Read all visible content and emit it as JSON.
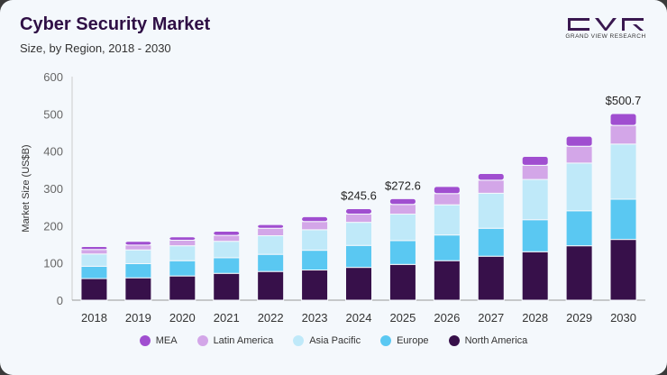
{
  "chart_data": {
    "type": "bar",
    "stacked": true,
    "title": "Cyber Security Market",
    "subtitle": "Size, by Region, 2018 - 2030",
    "ylabel": "Market Size (US$B)",
    "xlabel": "",
    "ylim": [
      0,
      600
    ],
    "yticks": [
      0,
      100,
      200,
      300,
      400,
      500,
      600
    ],
    "grid": false,
    "legend_position": "bottom",
    "categories": [
      "2018",
      "2019",
      "2020",
      "2021",
      "2022",
      "2023",
      "2024",
      "2025",
      "2026",
      "2027",
      "2028",
      "2029",
      "2030"
    ],
    "series": [
      {
        "name": "North America",
        "color": "#37104a",
        "values": [
          58,
          60,
          65,
          72,
          77,
          81,
          88,
          96,
          106,
          118,
          130,
          146,
          163
        ]
      },
      {
        "name": "Europe",
        "color": "#5ac8f2",
        "values": [
          33,
          38,
          41,
          42,
          46,
          53,
          59,
          64,
          69,
          75,
          86,
          94,
          108
        ]
      },
      {
        "name": "Asia Pacific",
        "color": "#bfe9f9",
        "values": [
          33,
          37,
          40,
          44,
          50,
          55,
          62,
          71,
          81,
          94,
          108,
          128,
          148
        ]
      },
      {
        "name": "Latin America",
        "color": "#d3a6e8",
        "values": [
          12,
          13,
          15,
          16,
          20,
          22,
          22,
          26,
          30,
          35,
          38,
          45,
          50
        ]
      },
      {
        "name": "MEA",
        "color": "#a04ed0",
        "values": [
          8,
          10,
          9,
          11,
          10,
          13,
          14.6,
          15.6,
          19,
          18,
          24,
          27,
          31.7
        ]
      }
    ],
    "data_labels": [
      {
        "category": "2024",
        "text": "$245.6"
      },
      {
        "category": "2025",
        "text": "$272.6"
      },
      {
        "category": "2030",
        "text": "$500.7"
      }
    ]
  },
  "logo": {
    "text": "GRAND VIEW RESEARCH",
    "letters": "GVR"
  },
  "legend_order": [
    "MEA",
    "Latin America",
    "Asia Pacific",
    "Europe",
    "North America"
  ]
}
